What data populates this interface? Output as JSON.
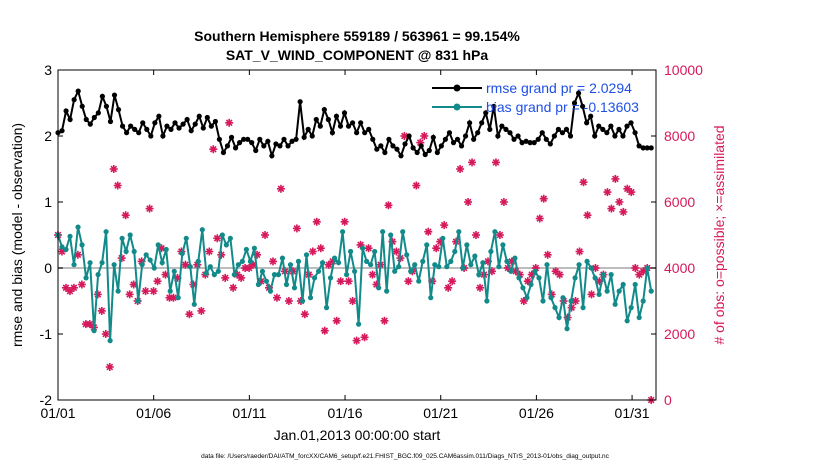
{
  "chart_data": {
    "type": "line",
    "title": "Southern Hemisphere 559189 / 563961 = 99.154%",
    "subtitle": "SAT_V_WIND_COMPONENT @ 831 hPa",
    "xlabel": "Jan.01,2013 00:00:00 start",
    "ylabel_left": "rmse and bias (model - observation)",
    "ylabel_right": "# of obs: o=possible; ×=assimilated",
    "footer": "data file: /Users/raeder/DAI/ATM_forcXX/CAM6_setup/f.e21.FHIST_BGC.f09_025.CAM6assim.011/Diags_NTrS_2013-01/obs_diag_output.nc",
    "xlim": [
      0,
      31.25
    ],
    "ylim_left": [
      -2,
      3
    ],
    "ylim_right": [
      0,
      10000
    ],
    "x_ticks": [
      0,
      5,
      10,
      15,
      20,
      25,
      30
    ],
    "x_tick_labels": [
      "01/01",
      "01/06",
      "01/11",
      "01/16",
      "01/21",
      "01/26",
      "01/31"
    ],
    "y_ticks_left": [
      -2,
      -1,
      0,
      1,
      2,
      3
    ],
    "y_tick_labels_left": [
      "-2",
      "-1",
      "0",
      "1",
      "2",
      "3"
    ],
    "y_ticks_right": [
      0,
      2000,
      4000,
      6000,
      8000,
      10000
    ],
    "y_tick_labels_right": [
      "0",
      "2000",
      "4000",
      "6000",
      "8000",
      "10000"
    ],
    "legend_position": "top-right",
    "colors": {
      "rmse": "#000000",
      "bias": "#138a8a",
      "obs": "#d6195c",
      "zero": "#bdbdbd"
    },
    "series": [
      {
        "name": "rmse grand pr = 2.0294",
        "axis": "left",
        "values": [
          2.05,
          2.08,
          2.38,
          2.25,
          2.55,
          2.68,
          2.45,
          2.25,
          2.18,
          2.28,
          2.35,
          2.6,
          2.45,
          2.22,
          2.62,
          2.4,
          2.15,
          2.05,
          2.15,
          2.1,
          2.05,
          2.2,
          2.1,
          2.0,
          2.2,
          2.3,
          2.0,
          2.15,
          2.1,
          2.2,
          2.12,
          2.18,
          2.25,
          2.08,
          2.18,
          2.3,
          2.12,
          2.28,
          2.15,
          2.22,
          1.95,
          1.75,
          1.85,
          1.98,
          1.82,
          1.9,
          1.95,
          1.95,
          1.9,
          1.78,
          1.95,
          1.85,
          1.92,
          1.7,
          1.88,
          1.85,
          1.95,
          1.85,
          1.92,
          1.95,
          2.52,
          1.98,
          2.1,
          2.0,
          2.25,
          2.15,
          2.4,
          2.25,
          2.05,
          2.3,
          2.15,
          2.35,
          2.15,
          2.2,
          2.05,
          2.2,
          2.05,
          2.1,
          1.95,
          1.8,
          1.85,
          1.75,
          1.95,
          1.85,
          1.8,
          1.7,
          1.88,
          2.0,
          1.82,
          1.75,
          1.85,
          1.72,
          1.78,
          1.98,
          1.75,
          1.85,
          1.95,
          2.05,
          1.9,
          1.95,
          1.85,
          2.0,
          2.2,
          1.95,
          2.05,
          2.2,
          2.35,
          2.1,
          2.45,
          2.0,
          2.15,
          2.1,
          2.05,
          1.95,
          2.0,
          1.9,
          1.92,
          1.9,
          1.9,
          1.95,
          2.05,
          1.95,
          1.88,
          2.0,
          2.1,
          2.05,
          2.1,
          2.0,
          2.5,
          2.65,
          2.45,
          2.2,
          2.3,
          2.0,
          2.15,
          2.1,
          2.05,
          2.15,
          2.0,
          2.1,
          2.0,
          2.15,
          2.2,
          2.05,
          1.85,
          1.82,
          1.82,
          1.82
        ]
      },
      {
        "name": "bias grand pr = -0.13603",
        "axis": "left",
        "values": [
          0.5,
          0.32,
          0.28,
          0.48,
          0.05,
          0.62,
          0.35,
          -0.15,
          0.08,
          -0.95,
          -0.1,
          0.08,
          0.55,
          -1.1,
          0.05,
          -0.35,
          0.45,
          0.25,
          0.5,
          0.25,
          -0.5,
          0.05,
          0.2,
          0.12,
          0.0,
          0.35,
          0.08,
          0.28,
          -0.35,
          -0.05,
          -0.45,
          0.22,
          0.45,
          0.02,
          -0.55,
          0.1,
          0.58,
          -0.08,
          0.02,
          -0.1,
          -0.05,
          0.5,
          0.35,
          0.45,
          -0.1,
          0.05,
          0.1,
          0.28,
          0.1,
          0.3,
          -0.25,
          -0.05,
          -0.2,
          -0.35,
          -0.1,
          -0.1,
          0.15,
          -0.25,
          0.05,
          -0.3,
          0.1,
          -0.5,
          0.2,
          -0.45,
          -0.15,
          -0.05,
          0.08,
          -0.6,
          -0.15,
          0.15,
          0.08,
          0.55,
          -0.1,
          0.25,
          -0.05,
          -0.85,
          0.3,
          0.1,
          0.05,
          0.25,
          -0.3,
          0.55,
          -0.35,
          0.5,
          -0.05,
          0.02,
          0.55,
          0.2,
          -0.05,
          0.05,
          -0.2,
          0.1,
          0.35,
          -0.45,
          0.05,
          0.02,
          0.45,
          0.02,
          0.1,
          0.25,
          0.55,
          0.0,
          0.35,
          0.05,
          0.18,
          -0.1,
          0.08,
          -0.5,
          0.25,
          0.55,
          0.02,
          0.35,
          0.1,
          -0.05,
          0.15,
          -0.15,
          -0.3,
          -0.45,
          -0.25,
          -0.05,
          -0.15,
          -0.5,
          0.05,
          -0.45,
          -0.6,
          -0.75,
          -0.45,
          -0.92,
          -0.5,
          -0.15,
          0.05,
          -0.6,
          0.1,
          0.0,
          -0.15,
          -0.4,
          -0.1,
          -0.35,
          -0.1,
          -0.55,
          -0.35,
          -0.25,
          -0.8,
          -0.6,
          -0.25,
          -0.75,
          -0.5,
          0.0,
          -0.35
        ]
      },
      {
        "name": "obs count",
        "axis": "right",
        "values": [
          5000,
          4500,
          3400,
          3300,
          3400,
          4400,
          3500,
          2300,
          2300,
          2200,
          3200,
          2700,
          2000,
          1000,
          7000,
          6500,
          4300,
          5600,
          3200,
          3500,
          3000,
          4200,
          3300,
          5800,
          3300,
          3600,
          4600,
          3800,
          3100,
          3100,
          3700,
          4500,
          4100,
          2600,
          3500,
          4100,
          2700,
          3800,
          4500,
          7600,
          4900,
          4400,
          3700,
          8400,
          3400,
          3800,
          3700,
          4000,
          4000,
          4100,
          4400,
          3600,
          5000,
          3400,
          4200,
          3100,
          6400,
          3900,
          3000,
          3900,
          5200,
          3000,
          2600,
          3800,
          4500,
          5400,
          4600,
          2100,
          4100,
          4200,
          2400,
          3600,
          5400,
          3600,
          3000,
          1800,
          4700,
          1900,
          4600,
          3800,
          3500,
          4100,
          2400,
          5900,
          4800,
          4500,
          4300,
          8000,
          3600,
          3900,
          6500,
          7800,
          8000,
          5100,
          3600,
          4600,
          4800,
          5300,
          3400,
          3600,
          4800,
          7000,
          4000,
          6000,
          7200,
          5000,
          3400,
          3800,
          4200,
          3900,
          7200,
          5000,
          6000,
          4000,
          4200,
          3900,
          3800,
          3000,
          3600,
          3800,
          4000,
          5500,
          6100,
          4400,
          3200,
          3900,
          3800,
          3000,
          2500,
          2800,
          3000,
          4500,
          6600,
          5600,
          3200,
          4000,
          3600,
          3800,
          6300,
          5800,
          6700,
          6000,
          5700,
          6400,
          6300,
          4000,
          3800,
          3900,
          4000,
          0
        ]
      }
    ]
  }
}
